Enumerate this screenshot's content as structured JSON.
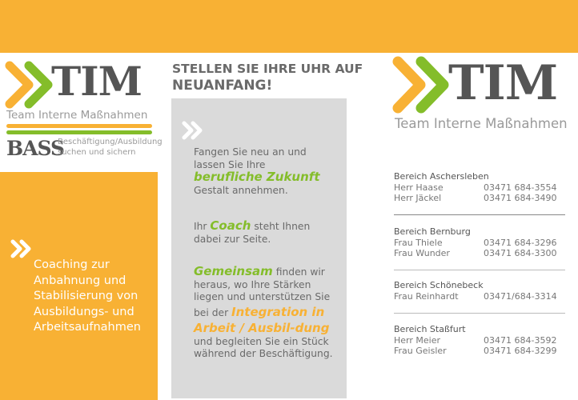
{
  "colors": {
    "orange": "#f8b134",
    "green": "#84bd2a",
    "gray_box": "#dadada"
  },
  "logo_left": {
    "brand": "TIM",
    "tagline": "Team Interne Maßnahmen",
    "bass": "BASS",
    "bass_line1": "Beschäftigung/Ausbildung",
    "bass_line2": "suchen und sichern"
  },
  "left_panel": {
    "icon": "double-chevron-icon",
    "text": "Coaching zur Anbahnung und Stabilisierung von Ausbildungs- und Arbeitsaufnahmen"
  },
  "middle": {
    "heading_line1": "STELLEN SIE IHRE UHR AUF",
    "heading_line2": "NEUANFANG!",
    "p1_a": "Fangen Sie neu an und lassen Sie Ihre",
    "p1_hl": "berufliche Zukunft",
    "p1_b": "Gestalt annehmen.",
    "p2_a": "Ihr",
    "p2_hl": "Coach",
    "p2_b": "steht Ihnen dabei zur Seite.",
    "p3_hl": "Gemeinsam",
    "p3_a": "finden wir heraus, wo Ihre Stärken liegen und unterstützen Sie bei der",
    "p3_hl2": "Integration in Arbeit / Ausbil-dung",
    "p3_b": "und begleiten Sie ein Stück während der Beschäftigung."
  },
  "logo_right": {
    "brand": "TIM",
    "tagline": "Team Interne Maßnahmen"
  },
  "contacts": [
    {
      "area": "Bereich Aschersleben",
      "people": [
        {
          "name": "Herr Haase",
          "phone": "03471 684-3554"
        },
        {
          "name": "Herr Jäckel",
          "phone": "03471 684-3490"
        }
      ]
    },
    {
      "area": "Bereich Bernburg",
      "people": [
        {
          "name": "Frau Thiele",
          "phone": "03471 684-3296"
        },
        {
          "name": "Frau Wunder",
          "phone": "03471 684-3300"
        }
      ]
    },
    {
      "area": "Bereich Schönebeck",
      "people": [
        {
          "name": "Frau Reinhardt",
          "phone": "03471/684-3314"
        }
      ]
    },
    {
      "area": "Bereich Staßfurt",
      "people": [
        {
          "name": "Herr Meier",
          "phone": "03471 684-3592"
        },
        {
          "name": "Frau Geisler",
          "phone": "03471 684-3299"
        }
      ]
    }
  ]
}
